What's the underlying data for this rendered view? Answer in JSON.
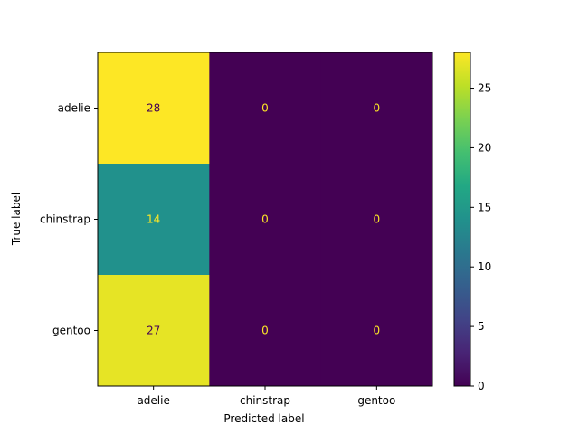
{
  "chart_data": {
    "type": "heatmap",
    "title": "",
    "xlabel": "Predicted label",
    "ylabel": "True label",
    "x_categories": [
      "adelie",
      "chinstrap",
      "gentoo"
    ],
    "y_categories": [
      "adelie",
      "chinstrap",
      "gentoo"
    ],
    "values": [
      [
        28,
        0,
        0
      ],
      [
        14,
        0,
        0
      ],
      [
        27,
        0,
        0
      ]
    ],
    "colormap": "viridis",
    "colorbar": {
      "range": [
        0,
        28
      ],
      "ticks": [
        0,
        5,
        10,
        15,
        20,
        25
      ]
    },
    "grid": false
  }
}
